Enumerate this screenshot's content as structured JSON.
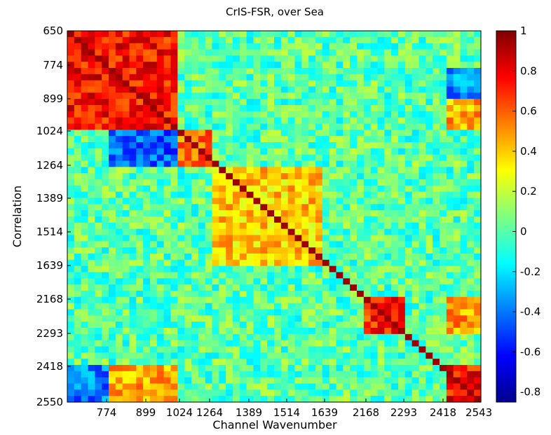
{
  "chart_data": {
    "type": "heatmap",
    "title": "CrIS-FSR, over Sea",
    "xlabel": "Channel Wavenumber",
    "ylabel": "Correlation",
    "x_ticks": [
      "774",
      "899",
      "1024",
      "1264",
      "1389",
      "1514",
      "1639",
      "2168",
      "2293",
      "2418",
      "2543"
    ],
    "y_ticks": [
      "650",
      "774",
      "899",
      "1024",
      "1264",
      "1389",
      "1514",
      "1639",
      "2168",
      "2293",
      "2418",
      "2550"
    ],
    "colorbar": {
      "min": -0.85,
      "max": 1.0,
      "ticks": [
        "1",
        "0.8",
        "0.6",
        "0.4",
        "0.2",
        "0",
        "-0.2",
        "-0.4",
        "-0.6",
        "-0.8"
      ],
      "tick_values": [
        1,
        0.8,
        0.6,
        0.4,
        0.2,
        0,
        -0.2,
        -0.4,
        -0.6,
        -0.8
      ],
      "colormap": "jet"
    },
    "grid": false,
    "legend": "colorbar-right",
    "blocks": [
      {
        "x": [
          650,
          1024
        ],
        "y": [
          650,
          1024
        ],
        "value": 0.75
      },
      {
        "x": [
          1024,
          1264
        ],
        "y": [
          1024,
          1264
        ],
        "value": 0.55
      },
      {
        "x": [
          1264,
          1639
        ],
        "y": [
          1264,
          1639
        ],
        "value": 0.4
      },
      {
        "x": [
          2168,
          2293
        ],
        "y": [
          2168,
          2293
        ],
        "value": 0.7
      },
      {
        "x": [
          2418,
          2550
        ],
        "y": [
          2418,
          2550
        ],
        "value": 0.75
      },
      {
        "x": [
          774,
          1024
        ],
        "y": [
          2418,
          2550
        ],
        "value": 0.45
      },
      {
        "x": [
          2418,
          2550
        ],
        "y": [
          899,
          1024
        ],
        "value": 0.45
      },
      {
        "x": [
          2418,
          2550
        ],
        "y": [
          2168,
          2293
        ],
        "value": 0.5
      },
      {
        "x": [
          2418,
          2550
        ],
        "y": [
          774,
          899
        ],
        "value": -0.35
      },
      {
        "x": [
          650,
          774
        ],
        "y": [
          2418,
          2550
        ],
        "value": -0.4
      },
      {
        "x": [
          774,
          1024
        ],
        "y": [
          899,
          1264
        ],
        "value": -0.45
      }
    ]
  }
}
